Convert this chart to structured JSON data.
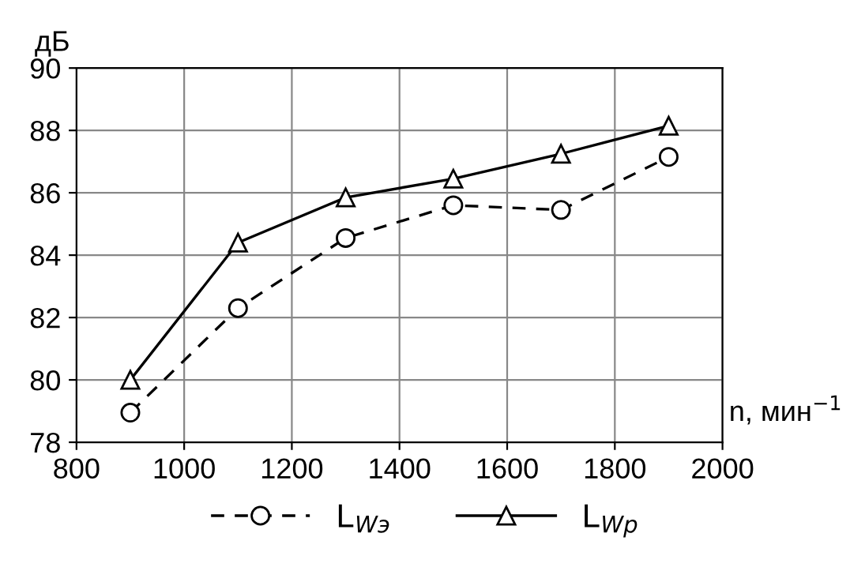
{
  "chart_data": {
    "type": "line",
    "ylabel": "дБ",
    "xlabel": "n, мин$^{−1}$",
    "x": [
      900,
      1100,
      1300,
      1500,
      1700,
      1900
    ],
    "series": [
      {
        "name": "L$_{Wэ}$",
        "color": "#000000",
        "marker": "circle",
        "line_style": "dashed",
        "values": [
          78.95,
          82.3,
          84.55,
          85.6,
          85.45,
          87.15
        ]
      },
      {
        "name": "L$_{Wр}$",
        "color": "#000000",
        "marker": "triangle",
        "line_style": "solid",
        "values": [
          80.0,
          84.4,
          85.85,
          86.45,
          87.25,
          88.15
        ]
      }
    ],
    "xlim": [
      800,
      2000
    ],
    "xticks": [
      800,
      1000,
      1200,
      1400,
      1600,
      1800,
      2000
    ],
    "ylim": [
      78,
      90
    ],
    "yticks": [
      78,
      80,
      82,
      84,
      86,
      88,
      90
    ],
    "grid": true,
    "legend": "bottom"
  }
}
